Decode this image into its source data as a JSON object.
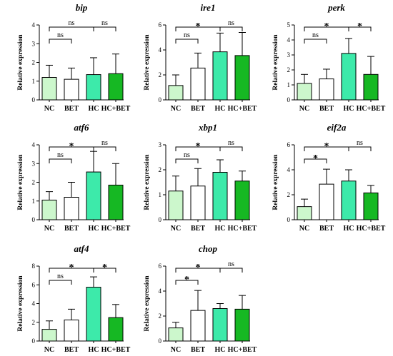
{
  "figure": {
    "categories": [
      "NC",
      "BET",
      "HC",
      "HC+BET"
    ],
    "ylabel": "Relative expression",
    "bar_colors": [
      "#ccf7cc",
      "#ffffff",
      "#3deaaa",
      "#16b823"
    ],
    "edge_color": "#000000"
  },
  "chart_data": [
    {
      "type": "bar",
      "title": "bip",
      "ylabel": "Relative expression",
      "categories": [
        "NC",
        "BET",
        "HC",
        "HC+BET"
      ],
      "ylim": [
        0,
        4
      ],
      "yticks": [
        0,
        1,
        2,
        3,
        4
      ],
      "values": [
        1.2,
        1.1,
        1.35,
        1.4
      ],
      "errors": [
        0.65,
        0.6,
        0.9,
        1.05
      ],
      "comparisons": [
        {
          "from": 0,
          "to": 1,
          "label": "ns",
          "level": 1
        },
        {
          "from": 0,
          "to": 2,
          "label": "ns",
          "level": 2
        },
        {
          "from": 2,
          "to": 3,
          "label": "ns",
          "level": 2
        }
      ]
    },
    {
      "type": "bar",
      "title": "ire1",
      "ylabel": "Relative expression",
      "categories": [
        "NC",
        "BET",
        "HC",
        "HC+BET"
      ],
      "ylim": [
        0,
        6
      ],
      "yticks": [
        0,
        2,
        4,
        6
      ],
      "values": [
        1.15,
        2.55,
        3.85,
        3.55
      ],
      "errors": [
        0.85,
        1.2,
        1.5,
        1.85
      ],
      "comparisons": [
        {
          "from": 0,
          "to": 1,
          "label": "ns",
          "level": 1
        },
        {
          "from": 0,
          "to": 2,
          "label": "*",
          "level": 2
        },
        {
          "from": 2,
          "to": 3,
          "label": "ns",
          "level": 2
        }
      ]
    },
    {
      "type": "bar",
      "title": "perk",
      "ylabel": "Relative expression",
      "categories": [
        "NC",
        "BET",
        "HC",
        "HC+BET"
      ],
      "ylim": [
        0,
        5
      ],
      "yticks": [
        0,
        1,
        2,
        3,
        4,
        5
      ],
      "values": [
        1.1,
        1.4,
        3.1,
        1.7
      ],
      "errors": [
        0.6,
        0.65,
        1.0,
        1.2
      ],
      "comparisons": [
        {
          "from": 0,
          "to": 1,
          "label": "ns",
          "level": 1
        },
        {
          "from": 0,
          "to": 2,
          "label": "*",
          "level": 2
        },
        {
          "from": 2,
          "to": 3,
          "label": "*",
          "level": 2
        }
      ]
    },
    {
      "type": "bar",
      "title": "atf6",
      "ylabel": "Relative expression",
      "categories": [
        "NC",
        "BET",
        "HC",
        "HC+BET"
      ],
      "ylim": [
        0,
        4
      ],
      "yticks": [
        0,
        1,
        2,
        3,
        4
      ],
      "values": [
        1.05,
        1.2,
        2.55,
        1.85
      ],
      "errors": [
        0.45,
        0.8,
        1.1,
        1.15
      ],
      "comparisons": [
        {
          "from": 0,
          "to": 1,
          "label": "ns",
          "level": 1
        },
        {
          "from": 0,
          "to": 2,
          "label": "*",
          "level": 2
        },
        {
          "from": 2,
          "to": 3,
          "label": "ns",
          "level": 2
        }
      ]
    },
    {
      "type": "bar",
      "title": "xbp1",
      "ylabel": "Relative expression",
      "categories": [
        "NC",
        "BET",
        "HC",
        "HC+BET"
      ],
      "ylim": [
        0,
        3
      ],
      "yticks": [
        0,
        1,
        2,
        3
      ],
      "values": [
        1.15,
        1.35,
        1.9,
        1.55
      ],
      "errors": [
        0.6,
        0.7,
        0.5,
        0.4
      ],
      "comparisons": [
        {
          "from": 0,
          "to": 1,
          "label": "ns",
          "level": 1
        },
        {
          "from": 0,
          "to": 2,
          "label": "*",
          "level": 2
        },
        {
          "from": 2,
          "to": 3,
          "label": "ns",
          "level": 2
        }
      ]
    },
    {
      "type": "bar",
      "title": "eif2a",
      "ylabel": "Relative expression",
      "categories": [
        "NC",
        "BET",
        "HC",
        "HC+BET"
      ],
      "ylim": [
        0,
        6
      ],
      "yticks": [
        0,
        2,
        4,
        6
      ],
      "values": [
        1.05,
        2.85,
        3.1,
        2.15
      ],
      "errors": [
        0.6,
        1.2,
        0.9,
        0.6
      ],
      "comparisons": [
        {
          "from": 0,
          "to": 1,
          "label": "*",
          "level": 1
        },
        {
          "from": 0,
          "to": 2,
          "label": "*",
          "level": 2
        },
        {
          "from": 2,
          "to": 3,
          "label": "ns",
          "level": 2
        }
      ]
    },
    {
      "type": "bar",
      "title": "atf4",
      "ylabel": "Relative expression",
      "categories": [
        "NC",
        "BET",
        "HC",
        "HC+BET"
      ],
      "ylim": [
        0,
        8
      ],
      "yticks": [
        0,
        2,
        4,
        6,
        8
      ],
      "values": [
        1.25,
        2.25,
        5.75,
        2.5
      ],
      "errors": [
        0.9,
        1.15,
        1.1,
        1.4
      ],
      "comparisons": [
        {
          "from": 0,
          "to": 1,
          "label": "ns",
          "level": 1
        },
        {
          "from": 0,
          "to": 2,
          "label": "*",
          "level": 2
        },
        {
          "from": 2,
          "to": 3,
          "label": "*",
          "level": 2
        }
      ]
    },
    {
      "type": "bar",
      "title": "chop",
      "ylabel": "Relative expression",
      "categories": [
        "NC",
        "BET",
        "HC",
        "HC+BET"
      ],
      "ylim": [
        0,
        6
      ],
      "yticks": [
        0,
        2,
        4,
        6
      ],
      "values": [
        1.05,
        2.45,
        2.6,
        2.55
      ],
      "errors": [
        0.45,
        1.6,
        0.4,
        1.1
      ],
      "comparisons": [
        {
          "from": 0,
          "to": 1,
          "label": "*",
          "level": 1
        },
        {
          "from": 0,
          "to": 2,
          "label": "*",
          "level": 2
        },
        {
          "from": 2,
          "to": 3,
          "label": "ns",
          "level": 2
        }
      ]
    }
  ]
}
